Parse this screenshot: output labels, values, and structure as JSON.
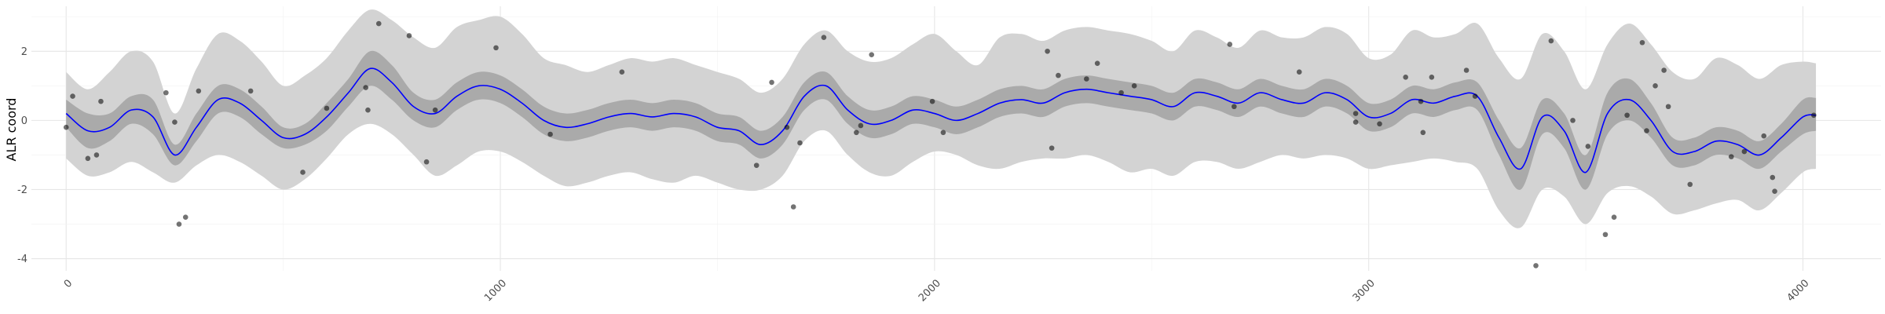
{
  "chart_data": {
    "type": "line",
    "title": "",
    "xlabel": "",
    "ylabel": "ALR coord",
    "xlim": [
      -80,
      4180
    ],
    "ylim": [
      -4.35,
      3.3
    ],
    "grid": true,
    "x_ticks": [
      0,
      1000,
      2000,
      3000,
      4000
    ],
    "y_ticks": [
      -4,
      -2,
      0,
      2
    ],
    "colors": {
      "line": "#0000ff",
      "inner_band": "#aaaaaa",
      "outer_band": "#d3d3d3",
      "points": "#000000",
      "grid_major": "#e6e6e6",
      "grid_minor": "#f2f2f2"
    },
    "series": [
      {
        "type": "line",
        "x": [
          0,
          50,
          100,
          150,
          200,
          250,
          300,
          350,
          400,
          450,
          500,
          550,
          600,
          650,
          700,
          750,
          800,
          850,
          900,
          950,
          1000,
          1050,
          1100,
          1150,
          1200,
          1250,
          1300,
          1350,
          1400,
          1450,
          1500,
          1550,
          1600,
          1650,
          1700,
          1750,
          1800,
          1850,
          1900,
          1950,
          2000,
          2050,
          2100,
          2150,
          2200,
          2250,
          2300,
          2350,
          2400,
          2450,
          2500,
          2550,
          2600,
          2650,
          2700,
          2750,
          2800,
          2850,
          2900,
          2950,
          3000,
          3050,
          3100,
          3150,
          3200,
          3250,
          3300,
          3350,
          3400,
          3450,
          3500,
          3550,
          3600,
          3650,
          3700,
          3750,
          3800,
          3850,
          3900,
          3950,
          4000,
          4030
        ],
        "y": [
          0.2,
          -0.3,
          -0.2,
          0.3,
          0.1,
          -1.0,
          -0.2,
          0.6,
          0.5,
          0.0,
          -0.5,
          -0.4,
          0.1,
          0.8,
          1.5,
          1.1,
          0.4,
          0.2,
          0.7,
          1.0,
          0.9,
          0.5,
          0.0,
          -0.2,
          -0.1,
          0.1,
          0.2,
          0.1,
          0.2,
          0.1,
          -0.2,
          -0.3,
          -0.7,
          -0.3,
          0.7,
          1.0,
          0.3,
          -0.1,
          0.0,
          0.3,
          0.2,
          0.0,
          0.2,
          0.5,
          0.6,
          0.5,
          0.8,
          0.9,
          0.8,
          0.7,
          0.6,
          0.4,
          0.8,
          0.7,
          0.5,
          0.8,
          0.6,
          0.5,
          0.8,
          0.6,
          0.1,
          0.2,
          0.6,
          0.5,
          0.7,
          0.7,
          -0.5,
          -1.4,
          0.1,
          -0.3,
          -1.5,
          0.2,
          0.6,
          0.0,
          -0.9,
          -0.9,
          -0.6,
          -0.7,
          -1.0,
          -0.5,
          0.1,
          0.15
        ]
      },
      {
        "type": "band",
        "lower": [
          -0.2,
          -0.8,
          -0.6,
          -0.1,
          -0.4,
          -1.3,
          -0.6,
          0.2,
          0.1,
          -0.4,
          -0.8,
          -0.7,
          -0.3,
          0.4,
          1.0,
          0.6,
          0.0,
          -0.2,
          0.3,
          0.6,
          0.5,
          0.1,
          -0.4,
          -0.6,
          -0.5,
          -0.3,
          -0.2,
          -0.3,
          -0.2,
          -0.3,
          -0.6,
          -0.7,
          -1.1,
          -0.7,
          0.3,
          0.6,
          -0.1,
          -0.5,
          -0.4,
          -0.1,
          -0.2,
          -0.4,
          -0.2,
          0.1,
          0.2,
          0.1,
          0.4,
          0.5,
          0.4,
          0.3,
          0.2,
          0.0,
          0.4,
          0.3,
          0.1,
          0.4,
          0.2,
          0.1,
          0.4,
          0.2,
          -0.3,
          -0.2,
          0.2,
          0.1,
          0.3,
          0.3,
          -1.0,
          -2.0,
          -0.4,
          -0.8,
          -2.0,
          -0.4,
          0.0,
          -0.5,
          -1.3,
          -1.3,
          -1.0,
          -1.1,
          -1.4,
          -0.9,
          -0.4,
          -0.3
        ],
        "upper": [
          0.6,
          0.2,
          0.2,
          0.7,
          0.6,
          -0.7,
          0.2,
          1.0,
          0.9,
          0.4,
          -0.2,
          -0.1,
          0.5,
          1.2,
          2.0,
          1.6,
          0.8,
          0.6,
          1.1,
          1.4,
          1.3,
          0.9,
          0.4,
          0.2,
          0.3,
          0.5,
          0.6,
          0.5,
          0.6,
          0.5,
          0.2,
          0.1,
          -0.3,
          0.1,
          1.1,
          1.4,
          0.7,
          0.3,
          0.4,
          0.7,
          0.6,
          0.4,
          0.6,
          0.9,
          1.0,
          0.9,
          1.2,
          1.3,
          1.2,
          1.1,
          1.0,
          0.8,
          1.2,
          1.1,
          0.9,
          1.2,
          1.0,
          0.9,
          1.2,
          1.0,
          0.5,
          0.6,
          1.0,
          0.9,
          1.1,
          1.1,
          0.0,
          -0.8,
          0.6,
          0.2,
          -1.0,
          0.8,
          1.2,
          0.5,
          -0.5,
          -0.5,
          -0.2,
          -0.3,
          -0.6,
          -0.1,
          0.6,
          0.65
        ]
      },
      {
        "type": "band",
        "lower": [
          -1.1,
          -1.6,
          -1.5,
          -1.2,
          -1.5,
          -1.8,
          -1.3,
          -1.0,
          -1.2,
          -1.6,
          -2.0,
          -1.7,
          -1.1,
          -0.4,
          -0.1,
          -0.4,
          -1.0,
          -1.6,
          -1.3,
          -0.9,
          -0.9,
          -1.2,
          -1.6,
          -1.9,
          -1.8,
          -1.6,
          -1.5,
          -1.7,
          -1.8,
          -1.6,
          -1.8,
          -2.0,
          -2.0,
          -1.6,
          -0.6,
          -0.3,
          -1.0,
          -1.5,
          -1.6,
          -1.2,
          -0.9,
          -1.0,
          -1.3,
          -1.4,
          -1.2,
          -1.1,
          -1.1,
          -1.0,
          -1.2,
          -1.5,
          -1.4,
          -1.6,
          -1.2,
          -1.2,
          -1.4,
          -1.2,
          -1.0,
          -1.1,
          -1.0,
          -1.1,
          -1.4,
          -1.3,
          -1.2,
          -1.1,
          -1.2,
          -1.4,
          -2.6,
          -3.1,
          -2.0,
          -2.2,
          -3.0,
          -2.1,
          -1.9,
          -2.2,
          -2.7,
          -2.6,
          -2.4,
          -2.3,
          -2.6,
          -2.1,
          -1.5,
          -1.4
        ],
        "upper": [
          1.4,
          0.9,
          1.4,
          2.0,
          1.7,
          0.2,
          1.5,
          2.5,
          2.3,
          1.7,
          1.0,
          1.3,
          1.8,
          2.6,
          3.2,
          2.9,
          2.4,
          2.1,
          2.7,
          2.9,
          3.0,
          2.5,
          1.8,
          1.6,
          1.4,
          1.6,
          1.8,
          1.7,
          1.8,
          1.6,
          1.4,
          1.2,
          0.8,
          1.2,
          2.2,
          2.6,
          2.0,
          1.7,
          1.8,
          2.2,
          2.5,
          2.0,
          1.6,
          2.4,
          2.5,
          2.3,
          2.6,
          2.7,
          2.6,
          2.5,
          2.3,
          2.0,
          2.6,
          2.4,
          2.1,
          2.6,
          2.4,
          2.4,
          2.7,
          2.5,
          1.8,
          1.9,
          2.6,
          2.4,
          2.5,
          2.8,
          1.8,
          1.2,
          2.5,
          2.0,
          0.9,
          2.2,
          2.8,
          2.2,
          1.4,
          1.2,
          1.8,
          1.6,
          1.2,
          1.6,
          1.7,
          1.65
        ]
      },
      {
        "type": "scatter",
        "points": [
          [
            0,
            -0.2
          ],
          [
            15,
            0.7
          ],
          [
            50,
            -1.1
          ],
          [
            70,
            -1.0
          ],
          [
            80,
            0.55
          ],
          [
            230,
            0.8
          ],
          [
            250,
            -0.05
          ],
          [
            260,
            -3.0
          ],
          [
            275,
            -2.8
          ],
          [
            305,
            0.85
          ],
          [
            425,
            0.85
          ],
          [
            545,
            -1.5
          ],
          [
            600,
            0.35
          ],
          [
            690,
            0.95
          ],
          [
            695,
            0.3
          ],
          [
            720,
            2.8
          ],
          [
            790,
            2.45
          ],
          [
            830,
            -1.2
          ],
          [
            850,
            0.3
          ],
          [
            990,
            2.1
          ],
          [
            1115,
            -0.4
          ],
          [
            1280,
            1.4
          ],
          [
            1590,
            -1.3
          ],
          [
            1625,
            1.1
          ],
          [
            1660,
            -0.2
          ],
          [
            1675,
            -2.5
          ],
          [
            1690,
            -0.65
          ],
          [
            1745,
            2.4
          ],
          [
            1820,
            -0.35
          ],
          [
            1830,
            -0.15
          ],
          [
            1855,
            1.9
          ],
          [
            1995,
            0.55
          ],
          [
            2020,
            -0.35
          ],
          [
            2260,
            2.0
          ],
          [
            2270,
            -0.8
          ],
          [
            2285,
            1.3
          ],
          [
            2350,
            1.2
          ],
          [
            2375,
            1.65
          ],
          [
            2430,
            0.8
          ],
          [
            2460,
            1.0
          ],
          [
            2680,
            2.2
          ],
          [
            2690,
            0.4
          ],
          [
            2840,
            1.4
          ],
          [
            2970,
            -0.05
          ],
          [
            2970,
            0.2
          ],
          [
            3025,
            -0.1
          ],
          [
            3085,
            1.25
          ],
          [
            3120,
            0.55
          ],
          [
            3125,
            -0.35
          ],
          [
            3145,
            1.25
          ],
          [
            3225,
            1.45
          ],
          [
            3245,
            0.7
          ],
          [
            3385,
            -4.2
          ],
          [
            3420,
            2.3
          ],
          [
            3470,
            0.0
          ],
          [
            3505,
            -0.75
          ],
          [
            3545,
            -3.3
          ],
          [
            3565,
            -2.8
          ],
          [
            3595,
            0.15
          ],
          [
            3630,
            2.25
          ],
          [
            3640,
            -0.3
          ],
          [
            3660,
            1.0
          ],
          [
            3680,
            1.45
          ],
          [
            3690,
            0.4
          ],
          [
            3740,
            -1.85
          ],
          [
            3835,
            -1.05
          ],
          [
            3865,
            -0.9
          ],
          [
            3910,
            -0.45
          ],
          [
            3930,
            -1.65
          ],
          [
            3935,
            -2.05
          ],
          [
            4025,
            0.15
          ]
        ]
      }
    ]
  }
}
